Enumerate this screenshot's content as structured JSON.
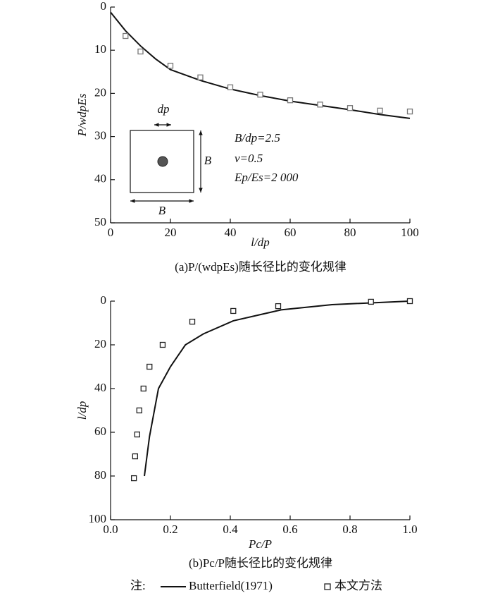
{
  "chart_data": [
    {
      "type": "line",
      "caption": "(a)P/(wdpEs)随长径比的变化规律",
      "xlabel": "l/dp",
      "ylabel": "P/wdpEs",
      "xlim": [
        0,
        100
      ],
      "xticks": [
        0,
        20,
        40,
        60,
        80,
        100
      ],
      "ylim": [
        0,
        50
      ],
      "yticks": [
        0,
        10,
        20,
        30,
        40,
        50
      ],
      "y_reversed": true,
      "series": [
        {
          "style": "line",
          "color": "#111111",
          "x": [
            0,
            5,
            10,
            15,
            20,
            30,
            40,
            50,
            60,
            70,
            80,
            90,
            100
          ],
          "values": [
            1.2,
            5.5,
            9,
            12,
            14.5,
            17,
            19,
            20.5,
            21.8,
            22.8,
            23.8,
            24.9,
            25.8
          ]
        },
        {
          "style": "marker",
          "color": "#777777",
          "x": [
            5,
            10,
            20,
            30,
            40,
            50,
            60,
            70,
            80,
            90,
            100
          ],
          "values": [
            6.7,
            10.3,
            13.6,
            16.3,
            18.6,
            20.3,
            21.6,
            22.6,
            23.4,
            24,
            24.2
          ]
        }
      ],
      "annotations": [
        "dp",
        "B",
        "B",
        "B/dp=2.5",
        "ν=0.5",
        "Ep/Es=2 000"
      ]
    },
    {
      "type": "line",
      "caption": "(b)Pc/P随长径比的变化规律",
      "xlabel": "Pc/P",
      "ylabel": "l/dp",
      "xlim": [
        0,
        1
      ],
      "xticks": [
        {
          "value": 0,
          "label": "0.0"
        },
        0.2,
        0.4,
        0.6,
        0.8,
        {
          "value": 1,
          "label": "1.0"
        }
      ],
      "ylim": [
        0,
        100
      ],
      "yticks": [
        0,
        20,
        40,
        60,
        80,
        100
      ],
      "y_reversed": true,
      "series": [
        {
          "name": "Butterfield(1971)",
          "style": "line",
          "color": "#111111",
          "x": [
            0.113,
            0.13,
            0.16,
            0.2,
            0.25,
            0.31,
            0.41,
            0.57,
            0.74,
            1.0
          ],
          "values": [
            80,
            62,
            40,
            30,
            20,
            15,
            9,
            4,
            1.6,
            0
          ]
        },
        {
          "name": "本文方法",
          "style": "marker",
          "color": "#222222",
          "x": [
            0.078,
            0.082,
            0.089,
            0.096,
            0.11,
            0.13,
            0.174,
            0.273,
            0.41,
            0.56,
            0.87,
            1.0
          ],
          "values": [
            81,
            71,
            61,
            50,
            40,
            30,
            20,
            9.4,
            4.5,
            2.3,
            0.3,
            0
          ]
        }
      ]
    }
  ],
  "note": "注:"
}
